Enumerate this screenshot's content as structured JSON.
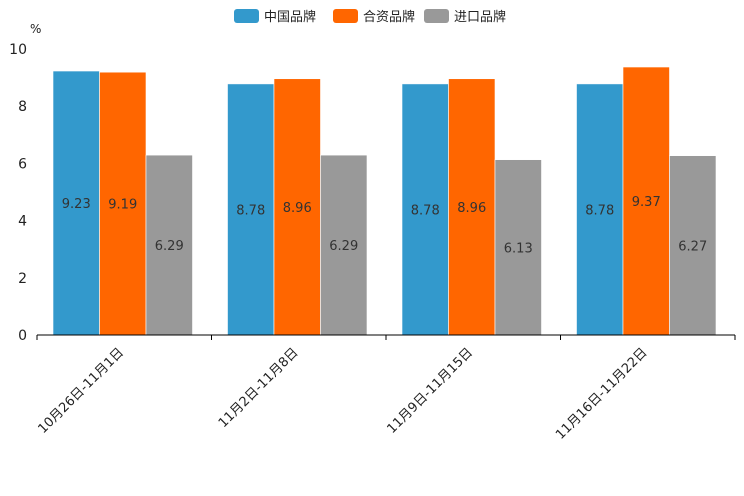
{
  "chart_data": {
    "type": "bar",
    "unit": "%",
    "ylim": [
      0,
      10
    ],
    "yticks": [
      0,
      2,
      4,
      6,
      8,
      10
    ],
    "categories": [
      "10月26日-11月1日",
      "11月2日-11月8日",
      "11月9日-11月15日",
      "11月16日-11月22日"
    ],
    "series": [
      {
        "name": "中国品牌",
        "color": "#3399cc",
        "values": [
          9.23,
          8.78,
          8.78,
          8.78
        ]
      },
      {
        "name": "合资品牌",
        "color": "#ff6600",
        "values": [
          9.19,
          8.96,
          8.96,
          9.37
        ]
      },
      {
        "name": "进口品牌",
        "color": "#999999",
        "values": [
          6.29,
          6.29,
          6.13,
          6.27
        ]
      }
    ],
    "legend_position": "top-center",
    "grid": false
  }
}
